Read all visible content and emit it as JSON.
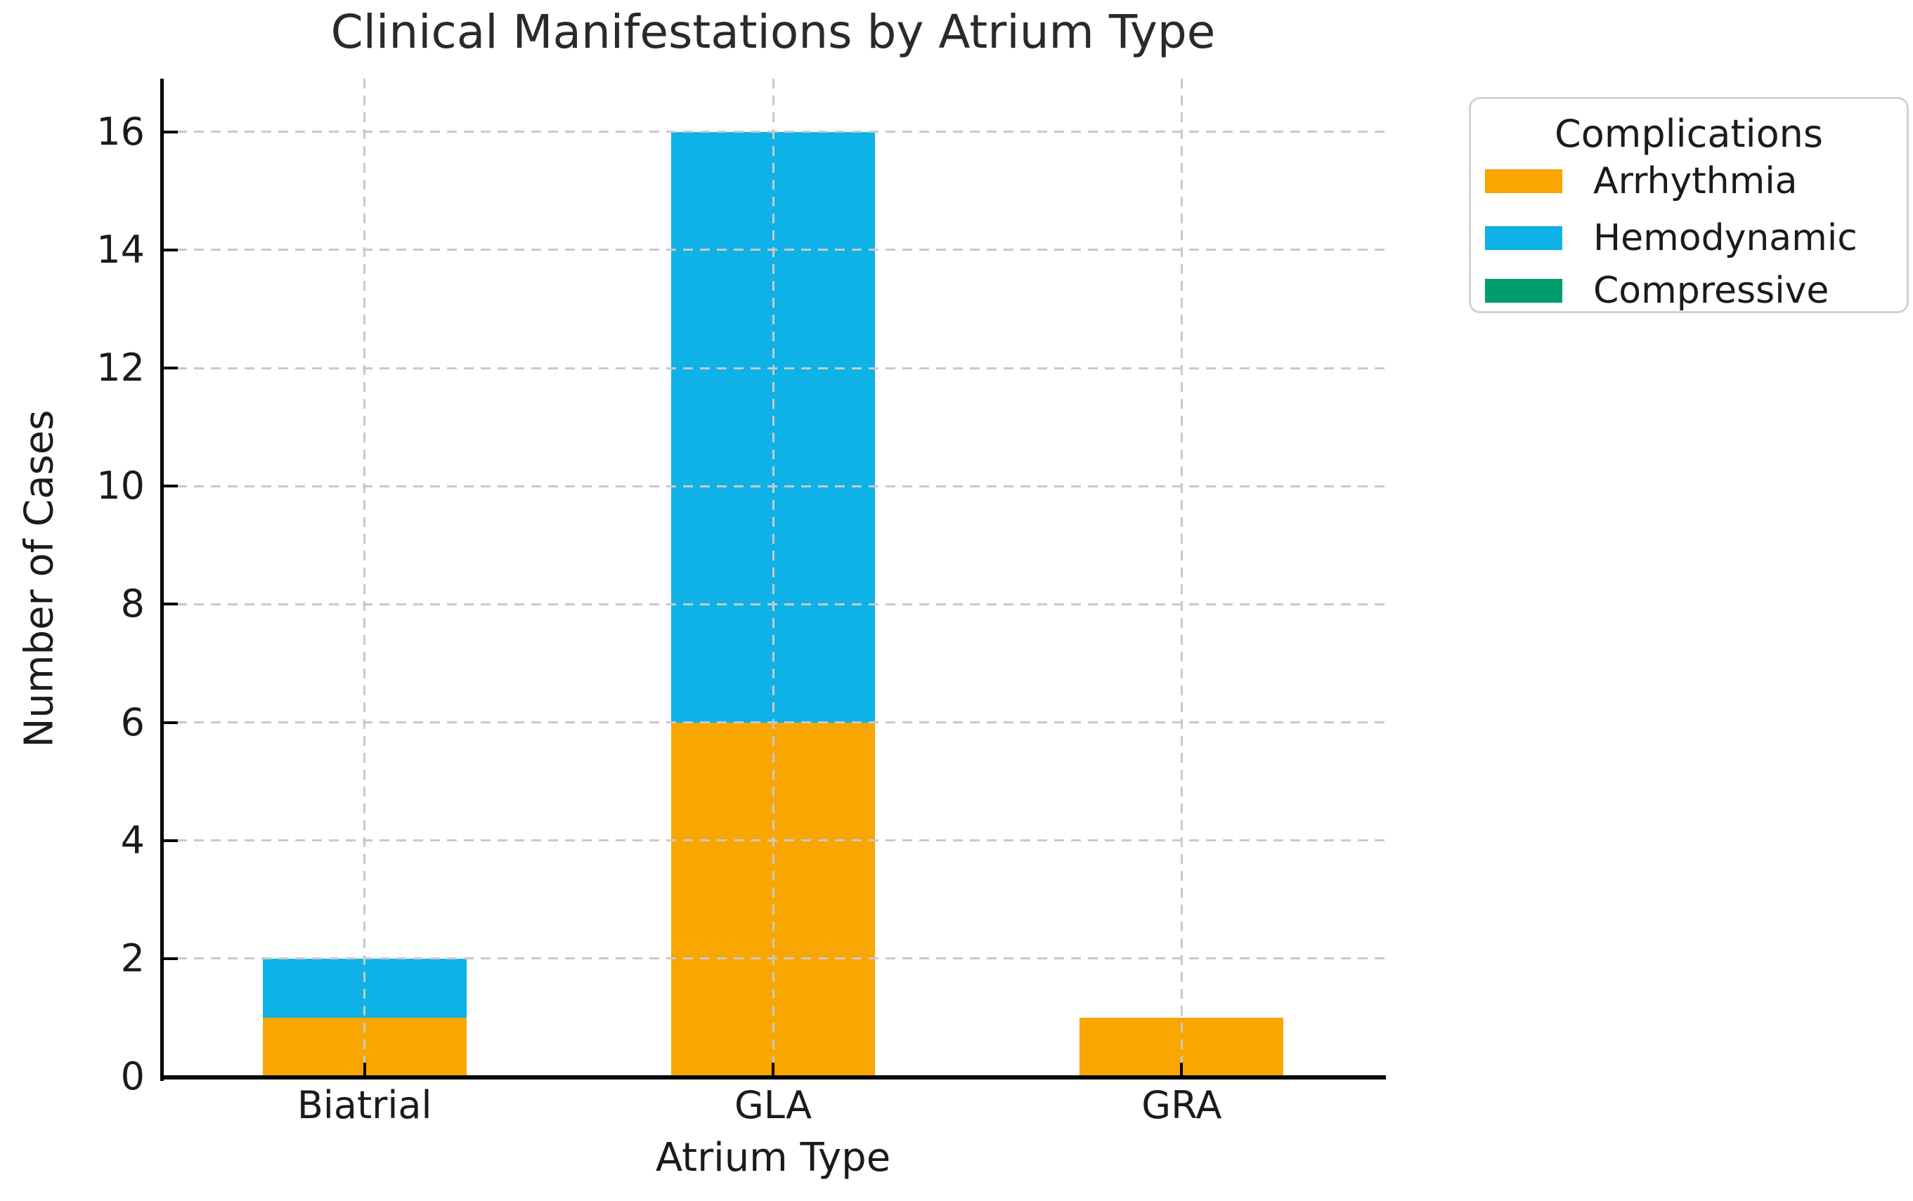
{
  "chart_data": {
    "type": "bar",
    "stacked": true,
    "title": "Clinical Manifestations by Atrium Type",
    "xlabel": "Atrium Type",
    "ylabel": "Number of Cases",
    "categories": [
      "Biatrial",
      "GLA",
      "GRA"
    ],
    "series": [
      {
        "name": "Arrhythmia",
        "color": "#F9A602",
        "values": [
          1,
          6,
          1
        ]
      },
      {
        "name": "Hemodynamic",
        "color": "#0EB2E7",
        "values": [
          1,
          10,
          0
        ]
      },
      {
        "name": "Compressive",
        "color": "#009E6E",
        "values": [
          0,
          0,
          0
        ]
      }
    ],
    "totals": [
      2,
      16,
      1
    ],
    "ylim": [
      0,
      16.9
    ],
    "yticks": [
      0,
      2,
      4,
      6,
      8,
      10,
      12,
      14,
      16
    ],
    "grid": true,
    "grid_style": "dashed",
    "legend": {
      "title": "Complications",
      "position": "upper-right-outside"
    }
  }
}
